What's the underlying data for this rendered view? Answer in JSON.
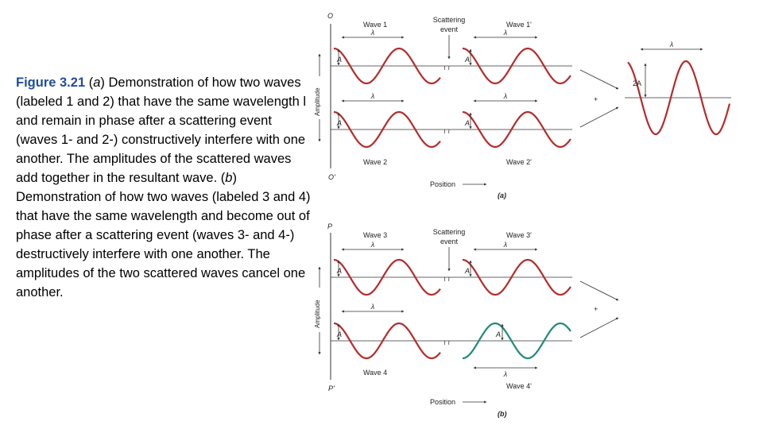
{
  "caption": {
    "figure_ref": "Figure 3.21",
    "a_letter": "a",
    "part1": " Demonstration of how two waves (labeled 1 and 2) that have the same wavelength l and remain in phase after a scattering event (waves 1- and 2-) constructively interfere with one another. The amplitudes of the scattered waves add together in the resultant wave. (",
    "b_letter": "b",
    "part2": ") Demonstration of how two waves (labeled 3 and 4) that have the same wavelength and become out of phase after a scattering event (waves 3- and 4-) destructively interfere with one another. The amplitudes of the two scattered waves cancel one another."
  },
  "figure": {
    "panel_a": {
      "top_marker": "O",
      "bottom_marker": "O'",
      "y_axis": "Amplitude",
      "x_axis": "Position",
      "wave_top_left": "Wave 1",
      "wave_top_right": "Wave 1'",
      "wave_bottom_left": "Wave 2",
      "wave_bottom_right": "Wave 2'",
      "scatter_line1": "Scattering",
      "scatter_line2": "event",
      "lambda": "λ",
      "amp": "A",
      "plus": "+",
      "result_amp": "2A",
      "panel_label": "(a)"
    },
    "panel_b": {
      "top_marker": "P",
      "bottom_marker": "P'",
      "y_axis": "Amplitude",
      "x_axis": "Position",
      "wave_top_left": "Wave 3",
      "wave_top_right": "Wave 3'",
      "wave_bottom_left": "Wave 4",
      "wave_bottom_right": "Wave 4'",
      "scatter_line1": "Scattering",
      "scatter_line2": "event",
      "lambda": "λ",
      "amp": "A",
      "plus": "+",
      "panel_label": "(b)"
    },
    "colors": {
      "wave": "#b52b2b",
      "shifted_wave": "#1f8a7a",
      "caption_accent": "#1f4e9c"
    }
  }
}
